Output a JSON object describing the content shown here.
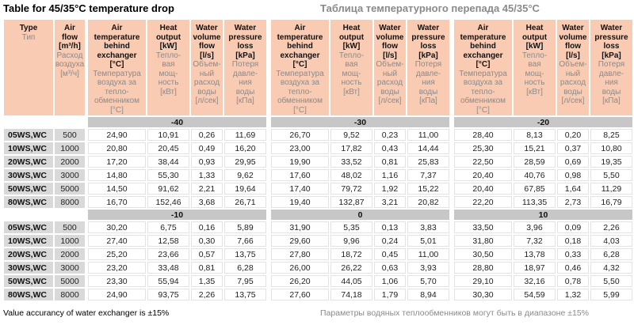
{
  "title": {
    "en": "Table for 45/35°C temperature drop",
    "ru": "Таблица температурного перепада 45/35°C"
  },
  "footer": {
    "en": "Value accurancy of water exchanger is ±15%",
    "ru": "Параметры водяных теплообменников могут быть в диапазоне ±15%"
  },
  "colors": {
    "header_bg": "#f9cbb3",
    "section_bar_bg": "#c7c7c7",
    "row_label_bg": "#d9d9d9",
    "secondary_text": "#8a8a8a"
  },
  "columns": {
    "type": {
      "en": "Type",
      "ru": "Тип"
    },
    "airflow": {
      "en": "Air\nflow\n[m³/h]",
      "ru": "Расход\nвоздуха\n[м³/ч]"
    },
    "groups": [
      {
        "name": "air-temp",
        "en": "Air\ntemperature\nbehind\nexchanger\n[°C]",
        "ru": "Температура\nвоздуха за\nтепло-\nобменником\n[°C]"
      },
      {
        "name": "heat-output",
        "en": "Heat\noutput\n[kW]",
        "ru": "Тепло-\nвая\nмощ-\nность\n[кВт]"
      },
      {
        "name": "water-volume-flow",
        "en": "Water\nvolume\nflow\n[l/s]",
        "ru": "Объем-\nный\nрасход\nводы\n[л/сек]"
      },
      {
        "name": "water-pressure-loss",
        "en": "Water\npressure\nloss\n[kPa]",
        "ru": "Потеря\nдавле-\nния\nводы\n[кПа]"
      }
    ]
  },
  "banks": [
    {
      "temps": [
        "-40",
        "-30",
        "-20"
      ],
      "rows": [
        {
          "type": "05WS,WC",
          "flow": "500",
          "values": [
            "24,90",
            "10,91",
            "0,26",
            "11,69",
            "26,70",
            "9,52",
            "0,23",
            "11,00",
            "28,40",
            "8,13",
            "0,20",
            "8,25"
          ]
        },
        {
          "type": "10WS,WC",
          "flow": "1000",
          "values": [
            "20,80",
            "20,45",
            "0,49",
            "16,20",
            "23,00",
            "17,82",
            "0,43",
            "14,44",
            "25,30",
            "15,21",
            "0,37",
            "10,80"
          ]
        },
        {
          "type": "20WS,WC",
          "flow": "2000",
          "values": [
            "17,20",
            "38,44",
            "0,93",
            "29,95",
            "19,90",
            "33,52",
            "0,81",
            "25,83",
            "22,50",
            "28,59",
            "0,69",
            "19,35"
          ]
        },
        {
          "type": "30WS,WC",
          "flow": "3000",
          "values": [
            "14,80",
            "55,30",
            "1,33",
            "9,62",
            "17,60",
            "48,02",
            "1,16",
            "7,37",
            "20,40",
            "40,76",
            "0,98",
            "5,50"
          ]
        },
        {
          "type": "50WS,WC",
          "flow": "5000",
          "values": [
            "14,50",
            "91,62",
            "2,21",
            "19,64",
            "17,40",
            "79,72",
            "1,92",
            "15,22",
            "20,40",
            "67,85",
            "1,64",
            "11,29"
          ]
        },
        {
          "type": "80WS,WC",
          "flow": "8000",
          "values": [
            "16,70",
            "152,46",
            "3,68",
            "26,71",
            "19,40",
            "132,87",
            "3,21",
            "20,82",
            "22,20",
            "113,35",
            "2,73",
            "16,79"
          ]
        }
      ]
    },
    {
      "temps": [
        "-10",
        "0",
        "10"
      ],
      "rows": [
        {
          "type": "05WS,WC",
          "flow": "500",
          "values": [
            "30,20",
            "6,75",
            "0,16",
            "5,89",
            "31,90",
            "5,35",
            "0,13",
            "3,83",
            "33,50",
            "3,96",
            "0,09",
            "2,26"
          ]
        },
        {
          "type": "10WS,WC",
          "flow": "1000",
          "values": [
            "27,40",
            "12,58",
            "0,30",
            "7,66",
            "29,60",
            "9,96",
            "0,24",
            "5,01",
            "31,80",
            "7,32",
            "0,18",
            "4,03"
          ]
        },
        {
          "type": "20WS,WC",
          "flow": "2000",
          "values": [
            "25,20",
            "23,66",
            "0,57",
            "13,75",
            "27,80",
            "18,72",
            "0,45",
            "11,00",
            "30,50",
            "13,78",
            "0,33",
            "6,28"
          ]
        },
        {
          "type": "30WS,WC",
          "flow": "3000",
          "values": [
            "23,20",
            "33,48",
            "0,81",
            "6,28",
            "26,00",
            "26,22",
            "0,63",
            "3,93",
            "28,80",
            "18,97",
            "0,46",
            "4,32"
          ]
        },
        {
          "type": "50WS,WC",
          "flow": "5000",
          "values": [
            "23,30",
            "55,94",
            "1,35",
            "7,95",
            "26,20",
            "44,05",
            "1,06",
            "5,70",
            "29,10",
            "32,16",
            "0,78",
            "5,50"
          ]
        },
        {
          "type": "80WS,WC",
          "flow": "8000",
          "values": [
            "24,90",
            "93,75",
            "2,26",
            "13,75",
            "27,60",
            "74,18",
            "1,79",
            "8,94",
            "30,30",
            "54,59",
            "1,32",
            "5,99"
          ]
        }
      ]
    }
  ]
}
